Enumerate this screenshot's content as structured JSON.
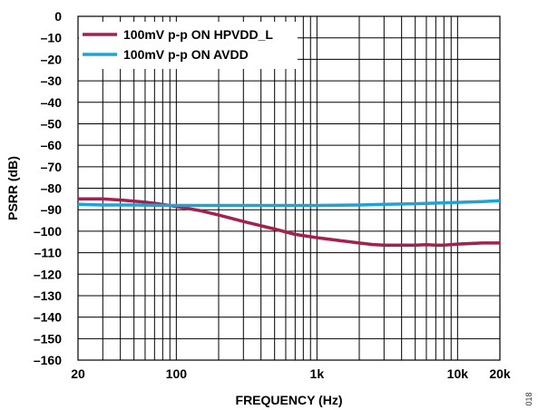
{
  "chart_data": {
    "type": "line",
    "title": "",
    "xlabel": "FREQUENCY (Hz)",
    "ylabel": "PSRR (dB)",
    "xscale": "log",
    "xlim": [
      20,
      20000
    ],
    "ylim": [
      -160,
      0
    ],
    "grid": true,
    "legend_position": "top-left",
    "x_tick_labels": [
      {
        "value": 20,
        "label": "20"
      },
      {
        "value": 100,
        "label": "100"
      },
      {
        "value": 1000,
        "label": "1k"
      },
      {
        "value": 10000,
        "label": "10k"
      },
      {
        "value": 20000,
        "label": "20k"
      }
    ],
    "y_ticks": [
      0,
      -10,
      -20,
      -30,
      -40,
      -50,
      -60,
      -70,
      -80,
      -90,
      -100,
      -110,
      -120,
      -130,
      -140,
      -150,
      -160
    ],
    "y_tick_labels": [
      "0",
      "–10",
      "–20",
      "–30",
      "–40",
      "–50",
      "–60",
      "–70",
      "–80",
      "–90",
      "–100",
      "–110",
      "–120",
      "–130",
      "–140",
      "–150",
      "–160"
    ],
    "series": [
      {
        "name": "100mV p-p ON HPVDD_L",
        "color": "#A3204F",
        "x": [
          20,
          30,
          40,
          50,
          60,
          70,
          80,
          100,
          150,
          200,
          300,
          500,
          700,
          1000,
          1500,
          2000,
          2500,
          3000,
          4000,
          5000,
          6000,
          7000,
          8000,
          10000,
          15000,
          20000
        ],
        "y": [
          -85,
          -85,
          -85.5,
          -86,
          -86.5,
          -87,
          -87.5,
          -88.5,
          -90.5,
          -92.5,
          -95.5,
          -99,
          -101.5,
          -103,
          -104.5,
          -105.5,
          -106.2,
          -106.5,
          -106.5,
          -106.5,
          -106.3,
          -106.5,
          -106.5,
          -106,
          -105.5,
          -105.5
        ]
      },
      {
        "name": "100mV p-p ON AVDD",
        "color": "#1FA3D6",
        "x": [
          20,
          30,
          50,
          100,
          200,
          500,
          1000,
          2000,
          3000,
          5000,
          8000,
          10000,
          15000,
          20000
        ],
        "y": [
          -87.5,
          -87.8,
          -87.8,
          -88,
          -88,
          -88,
          -88,
          -87.8,
          -87.5,
          -87.2,
          -86.8,
          -86.6,
          -86.2,
          -85.8
        ]
      }
    ]
  },
  "figure_id": "018"
}
